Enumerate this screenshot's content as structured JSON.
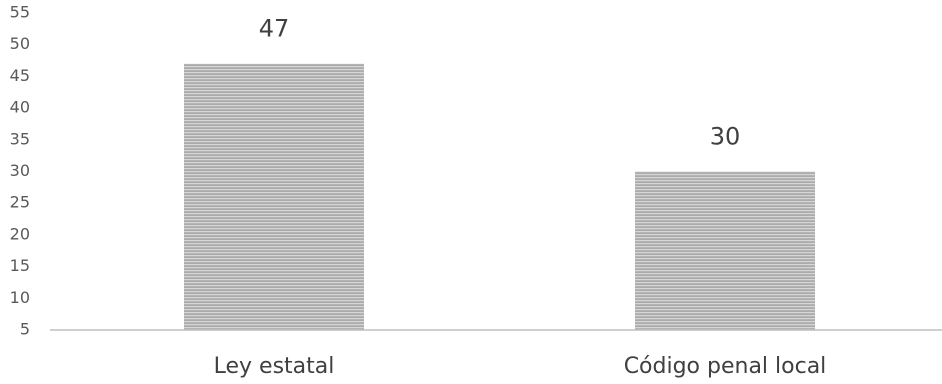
{
  "chart_data": {
    "type": "bar",
    "categories": [
      "Ley estatal",
      "Código penal local"
    ],
    "values": [
      47,
      30
    ],
    "data_labels": [
      "47",
      "30"
    ],
    "yticks": [
      5,
      10,
      15,
      20,
      25,
      30,
      35,
      40,
      45,
      50,
      55
    ],
    "ylim": [
      5,
      55
    ],
    "grid": false,
    "legend": "none",
    "bar_fill": "#ababab",
    "bar_stripe": "#d6d6d6",
    "axis_color": "#bfbfbf"
  }
}
